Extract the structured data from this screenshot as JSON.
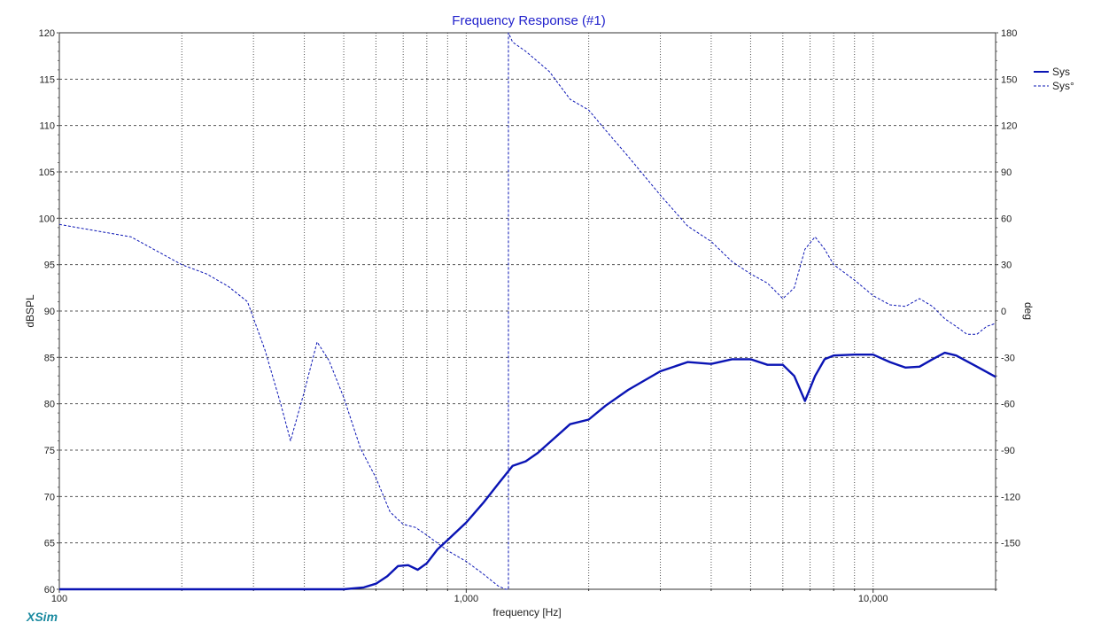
{
  "colors": {
    "series": "#0a14b4",
    "grid": "#555555",
    "title": "#2222cc",
    "brand": "#1a8aa0"
  },
  "brand": "XSim",
  "chart_data": {
    "type": "line",
    "title": "Frequency Response (#1)",
    "xlabel": "frequency [Hz]",
    "ylabel": "dBSPL",
    "y2label": "deg",
    "xscale": "log",
    "xlim": [
      100,
      20000
    ],
    "ylim": [
      60,
      120
    ],
    "y2lim": [
      -180,
      180
    ],
    "xticks": [
      100,
      1000,
      10000
    ],
    "xtick_labels": [
      "100",
      "1,000",
      "10,000"
    ],
    "yticks": [
      60,
      65,
      70,
      75,
      80,
      85,
      90,
      95,
      100,
      105,
      110,
      115,
      120
    ],
    "ytick_labels": [
      "60",
      "65",
      "70",
      "75",
      "80",
      "85",
      "90",
      "95",
      "100",
      "105",
      "110",
      "115",
      "120"
    ],
    "y2ticks": [
      -150,
      -120,
      -90,
      -60,
      -30,
      0,
      30,
      60,
      90,
      120,
      150,
      180
    ],
    "y2tick_labels": [
      "-150",
      "-120",
      "-90",
      "-60",
      "-30",
      "0",
      "30",
      "60",
      "90",
      "120",
      "150",
      "180"
    ],
    "grid": true,
    "legend_position": "top-right",
    "series": [
      {
        "name": "Sys",
        "axis": "left",
        "style": "solid",
        "x": [
          100,
          200,
          300,
          400,
          500,
          560,
          600,
          640,
          680,
          720,
          760,
          800,
          850,
          900,
          1000,
          1100,
          1200,
          1300,
          1400,
          1500,
          1600,
          1800,
          2000,
          2200,
          2500,
          3000,
          3500,
          4000,
          4500,
          5000,
          5500,
          6000,
          6400,
          6800,
          7200,
          7600,
          8000,
          9000,
          10000,
          11000,
          12000,
          13000,
          14000,
          15000,
          16000,
          18000,
          20000
        ],
        "y": [
          60,
          60,
          60,
          60,
          60,
          60.2,
          60.6,
          61.4,
          62.5,
          62.6,
          62.1,
          62.8,
          64.3,
          65.3,
          67.2,
          69.3,
          71.4,
          73.3,
          73.8,
          74.7,
          75.8,
          77.8,
          78.3,
          79.8,
          81.5,
          83.5,
          84.5,
          84.3,
          84.8,
          84.8,
          84.2,
          84.2,
          83.0,
          80.3,
          83.0,
          84.8,
          85.2,
          85.3,
          85.3,
          84.5,
          83.9,
          84.0,
          84.8,
          85.5,
          85.2,
          84.0,
          82.9
        ]
      },
      {
        "name": "Sys°",
        "axis": "right",
        "style": "dashed",
        "x": [
          100,
          150,
          200,
          230,
          260,
          290,
          320,
          350,
          370,
          400,
          430,
          460,
          500,
          550,
          600,
          650,
          700,
          750,
          800,
          900,
          1000,
          1100,
          1200,
          1250,
          1270,
          1300,
          1400,
          1600,
          1800,
          2000,
          2200,
          2500,
          3000,
          3500,
          4000,
          4500,
          5000,
          5500,
          6000,
          6400,
          6800,
          7200,
          7600,
          8000,
          9000,
          10000,
          11000,
          12000,
          13000,
          14000,
          15000,
          16000,
          17000,
          18000,
          19000,
          20000
        ],
        "y": [
          56,
          48,
          30,
          24,
          16,
          6,
          -25,
          -60,
          -84,
          -52,
          -20,
          -32,
          -56,
          -89,
          -108,
          -130,
          -138,
          -140,
          -145,
          -155,
          -162,
          -170,
          -178,
          -180,
          180,
          174,
          168,
          155,
          137,
          130,
          117,
          100,
          75,
          55,
          45,
          32,
          24,
          18,
          8,
          15,
          40,
          48,
          40,
          30,
          20,
          10,
          4,
          3,
          8,
          3,
          -5,
          -10,
          -15,
          -15,
          -10,
          -8
        ]
      }
    ]
  }
}
